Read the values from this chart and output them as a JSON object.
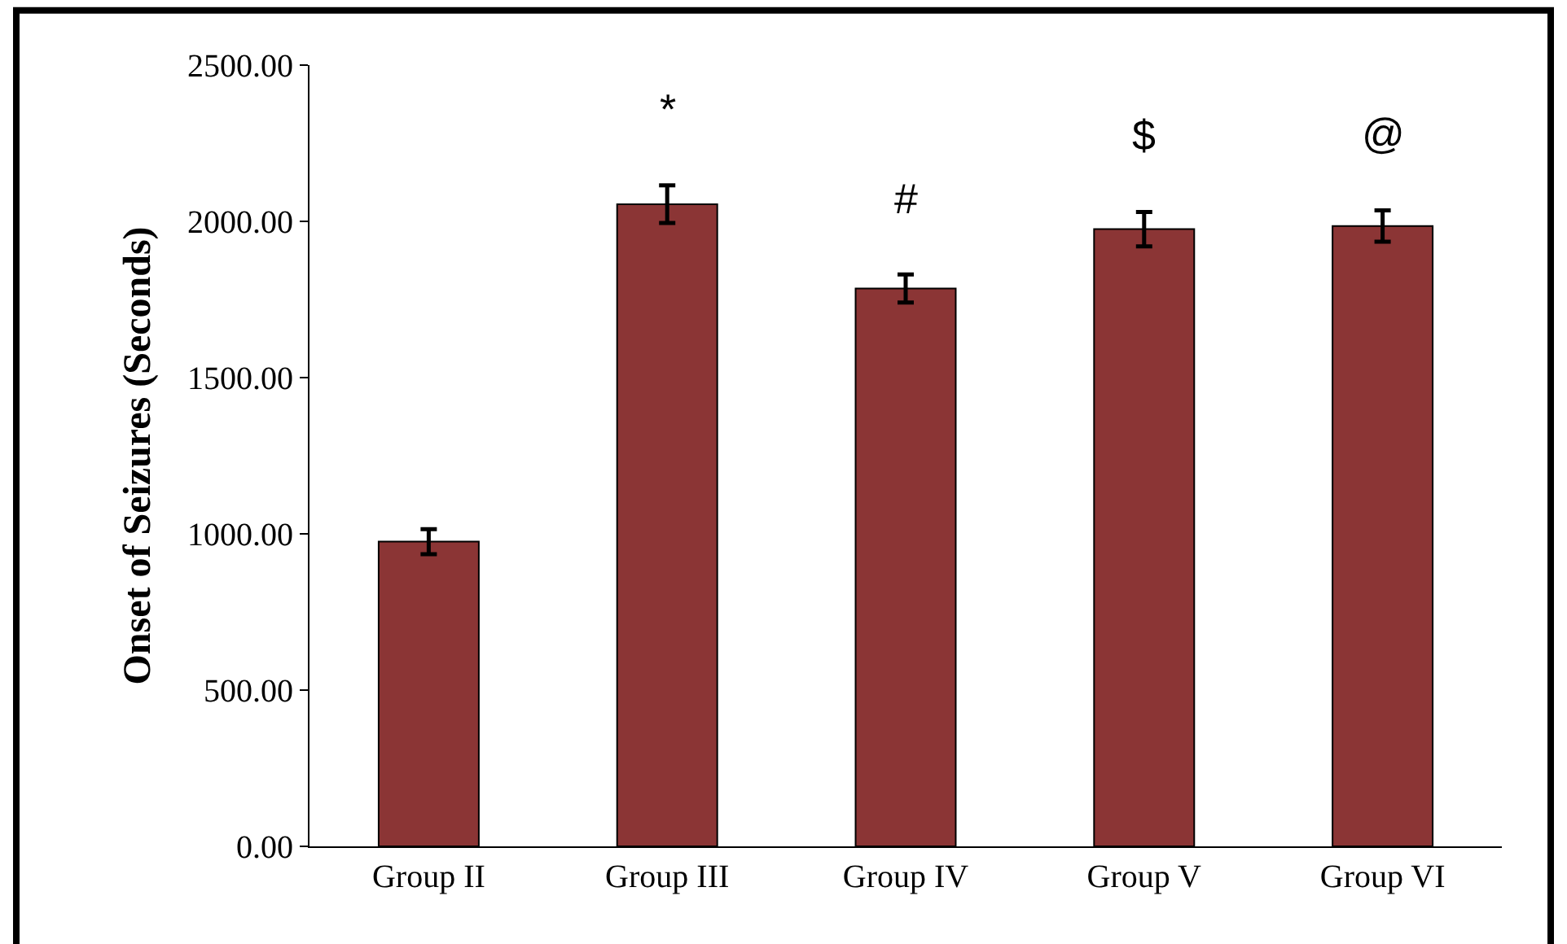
{
  "chart_data": {
    "type": "bar",
    "ylabel": "Onset of Seizures (Seconds)",
    "categories": [
      "Group II",
      "Group III",
      "Group IV",
      "Group V",
      "Group VI"
    ],
    "values": [
      975,
      2055,
      1785,
      1975,
      1985
    ],
    "errors": [
      40,
      60,
      45,
      55,
      50
    ],
    "color": "#8b3535",
    "ylim": [
      0,
      2500
    ],
    "yticks": [
      {
        "value": 0,
        "label": "0.00"
      },
      {
        "value": 500,
        "label": "500.00"
      },
      {
        "value": 1000,
        "label": "1000.00"
      },
      {
        "value": 1500,
        "label": "1500.00"
      },
      {
        "value": 2000,
        "label": "2000.00"
      },
      {
        "value": 2500,
        "label": "2500.00"
      }
    ],
    "annotations": [
      "*",
      "#",
      "$",
      "@"
    ]
  }
}
